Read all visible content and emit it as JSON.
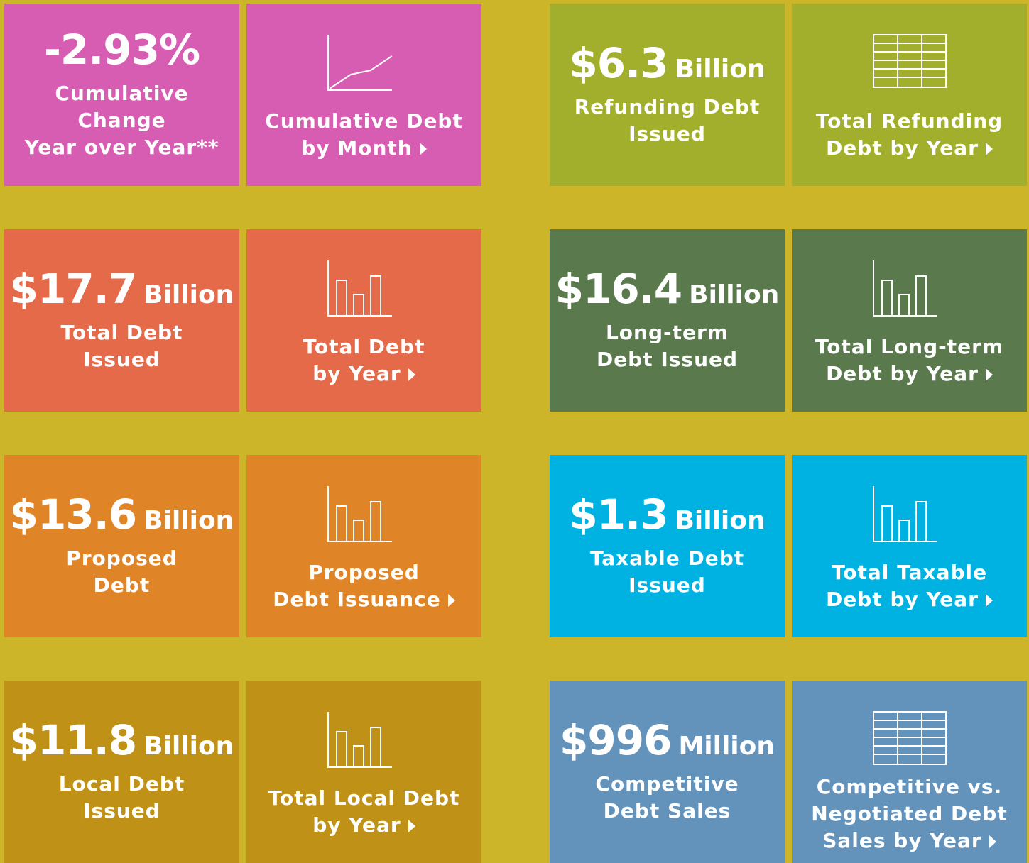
{
  "tiles": [
    {
      "value": "-2.93%",
      "label": [
        "Cumulative",
        "Change",
        "Year over Year**"
      ],
      "color": "#d65db1"
    },
    {
      "icon": "line",
      "label": [
        "Cumulative Debt",
        "by Month"
      ],
      "color": "#d65db1"
    },
    {
      "value": "$6.3",
      "unit": "Billion",
      "label": [
        "Refunding Debt",
        "Issued"
      ],
      "color": "#a2af2c"
    },
    {
      "icon": "table",
      "label": [
        "Total Refunding",
        "Debt by Year"
      ],
      "color": "#a2af2c"
    },
    {
      "value": "$17.7",
      "unit": "Billion",
      "label": [
        "Total Debt",
        "Issued"
      ],
      "color": "#e56a4a"
    },
    {
      "icon": "bar",
      "label": [
        "Total Debt",
        "by Year"
      ],
      "color": "#e56a4a"
    },
    {
      "value": "$16.4",
      "unit": "Billion",
      "label": [
        "Long-term",
        "Debt Issued"
      ],
      "color": "#5a7a4e"
    },
    {
      "icon": "bar",
      "label": [
        "Total Long-term",
        "Debt by Year"
      ],
      "color": "#5a7a4e"
    },
    {
      "value": "$13.6",
      "unit": "Billion",
      "label": [
        "Proposed",
        "Debt"
      ],
      "color": "#e08428"
    },
    {
      "icon": "bar",
      "label": [
        "Proposed",
        "Debt Issuance"
      ],
      "color": "#e08428"
    },
    {
      "value": "$1.3",
      "unit": "Billion",
      "label": [
        "Taxable Debt",
        "Issued"
      ],
      "color": "#00b2e2"
    },
    {
      "icon": "bar",
      "label": [
        "Total Taxable",
        "Debt by Year"
      ],
      "color": "#00b2e2"
    },
    {
      "value": "$11.8",
      "unit": "Billion",
      "label": [
        "Local Debt",
        "Issued"
      ],
      "color": "#bf9116"
    },
    {
      "icon": "bar",
      "label": [
        "Total Local Debt",
        "by Year"
      ],
      "color": "#bf9116"
    },
    {
      "value": "$996",
      "unit": "Million",
      "label": [
        "Competitive",
        "Debt Sales"
      ],
      "color": "#6392bb"
    },
    {
      "icon": "table",
      "label": [
        "Competitive vs.",
        "Negotiated Debt",
        "Sales by Year"
      ],
      "color": "#6392bb"
    }
  ]
}
